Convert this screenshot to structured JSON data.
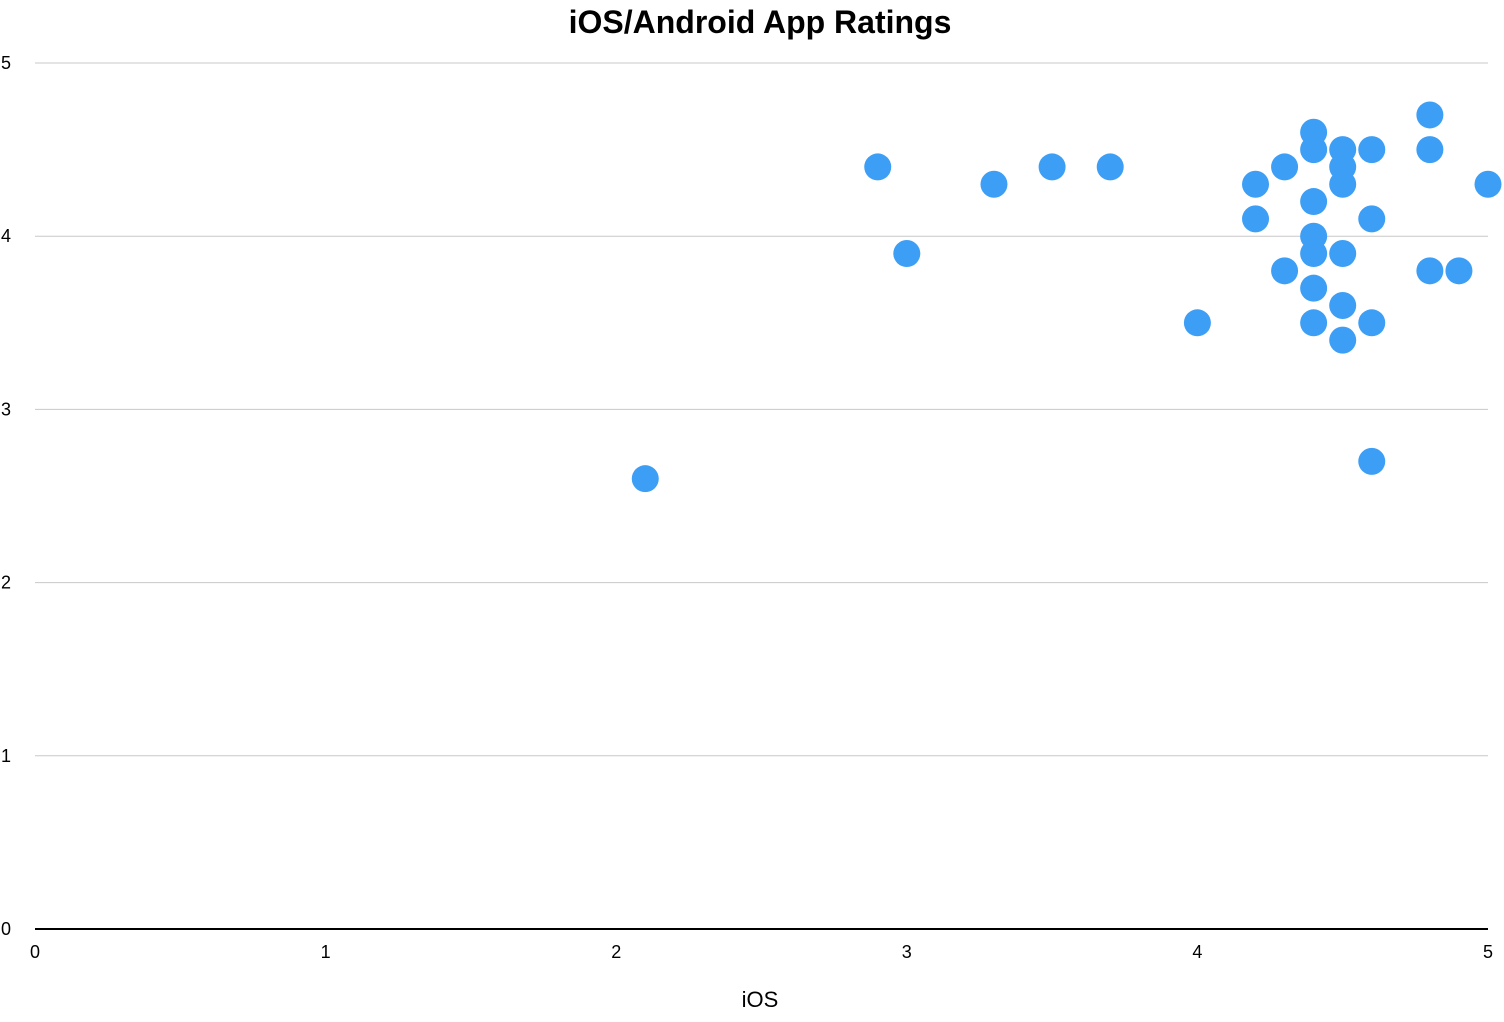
{
  "chart_data": {
    "type": "scatter",
    "title": "iOS/Android App Ratings",
    "xlabel": "iOS",
    "ylabel": "",
    "xlim": [
      0,
      5
    ],
    "ylim": [
      0,
      5
    ],
    "x_ticks": [
      "0",
      "1",
      "2",
      "3",
      "4",
      "5"
    ],
    "y_ticks": [
      "0",
      "1",
      "2",
      "3",
      "4",
      "5"
    ],
    "grid": "horizontal",
    "legend": "none",
    "point_color": "#3d9ef5",
    "gridline_color": "#c8c8c8",
    "axis_color": "#000000",
    "points": [
      {
        "x": 2.1,
        "y": 2.6
      },
      {
        "x": 2.9,
        "y": 4.4
      },
      {
        "x": 3.0,
        "y": 3.9
      },
      {
        "x": 3.3,
        "y": 4.3
      },
      {
        "x": 3.5,
        "y": 4.4
      },
      {
        "x": 3.7,
        "y": 4.4
      },
      {
        "x": 4.0,
        "y": 3.5
      },
      {
        "x": 4.2,
        "y": 4.3
      },
      {
        "x": 4.2,
        "y": 4.1
      },
      {
        "x": 4.3,
        "y": 4.4
      },
      {
        "x": 4.3,
        "y": 3.8
      },
      {
        "x": 4.4,
        "y": 4.6
      },
      {
        "x": 4.4,
        "y": 4.5
      },
      {
        "x": 4.4,
        "y": 4.2
      },
      {
        "x": 4.4,
        "y": 4.0
      },
      {
        "x": 4.4,
        "y": 3.9
      },
      {
        "x": 4.4,
        "y": 3.7
      },
      {
        "x": 4.4,
        "y": 3.5
      },
      {
        "x": 4.5,
        "y": 4.5
      },
      {
        "x": 4.5,
        "y": 4.4
      },
      {
        "x": 4.5,
        "y": 4.3
      },
      {
        "x": 4.5,
        "y": 3.9
      },
      {
        "x": 4.5,
        "y": 3.6
      },
      {
        "x": 4.5,
        "y": 3.4
      },
      {
        "x": 4.6,
        "y": 4.5
      },
      {
        "x": 4.6,
        "y": 4.1
      },
      {
        "x": 4.6,
        "y": 3.5
      },
      {
        "x": 4.6,
        "y": 2.7
      },
      {
        "x": 4.8,
        "y": 4.7
      },
      {
        "x": 4.8,
        "y": 4.5
      },
      {
        "x": 4.8,
        "y": 3.8
      },
      {
        "x": 4.9,
        "y": 3.8
      },
      {
        "x": 5.0,
        "y": 4.3
      }
    ]
  }
}
